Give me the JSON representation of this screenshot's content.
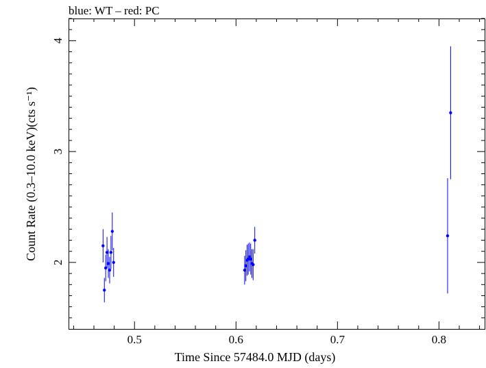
{
  "chart_data": {
    "type": "scatter",
    "title": "blue: WT – red: PC",
    "xlabel": "Time Since 57484.0 MJD (days)",
    "ylabel": "Count Rate (0.3–10.0 keV)(cts s⁻¹)",
    "xlim": [
      0.435,
      0.845
    ],
    "ylim": [
      1.4,
      4.2
    ],
    "xticks": [
      0.5,
      0.6,
      0.7,
      0.8
    ],
    "xtick_labels": [
      "0.5",
      "0.6",
      "0.7",
      "0.8"
    ],
    "yticks": [
      2,
      3,
      4
    ],
    "ytick_labels": [
      "2",
      "3",
      "4"
    ],
    "grid": false,
    "series": [
      {
        "name": "WT",
        "color": "#0000ff",
        "points": [
          {
            "x": 0.469,
            "y": 2.15,
            "yerr": 0.15
          },
          {
            "x": 0.4703,
            "y": 1.75,
            "yerr": 0.11
          },
          {
            "x": 0.4716,
            "y": 1.95,
            "yerr": 0.12
          },
          {
            "x": 0.4729,
            "y": 2.09,
            "yerr": 0.14
          },
          {
            "x": 0.4742,
            "y": 1.99,
            "yerr": 0.13
          },
          {
            "x": 0.4755,
            "y": 1.93,
            "yerr": 0.12
          },
          {
            "x": 0.4768,
            "y": 2.09,
            "yerr": 0.15
          },
          {
            "x": 0.4781,
            "y": 2.28,
            "yerr": 0.17
          },
          {
            "x": 0.4794,
            "y": 2.0,
            "yerr": 0.13
          },
          {
            "x": 0.6085,
            "y": 1.93,
            "yerr": 0.13
          },
          {
            "x": 0.6097,
            "y": 1.97,
            "yerr": 0.14
          },
          {
            "x": 0.6109,
            "y": 2.02,
            "yerr": 0.14
          },
          {
            "x": 0.6121,
            "y": 2.03,
            "yerr": 0.14
          },
          {
            "x": 0.6133,
            "y": 2.05,
            "yerr": 0.13
          },
          {
            "x": 0.6145,
            "y": 2.03,
            "yerr": 0.14
          },
          {
            "x": 0.6157,
            "y": 1.99,
            "yerr": 0.13
          },
          {
            "x": 0.6169,
            "y": 1.98,
            "yerr": 0.14
          },
          {
            "x": 0.6185,
            "y": 2.2,
            "yerr": 0.12
          },
          {
            "x": 0.8085,
            "y": 2.24,
            "yerr": 0.52
          },
          {
            "x": 0.8115,
            "y": 3.35,
            "yerr": 0.6
          }
        ]
      }
    ]
  }
}
